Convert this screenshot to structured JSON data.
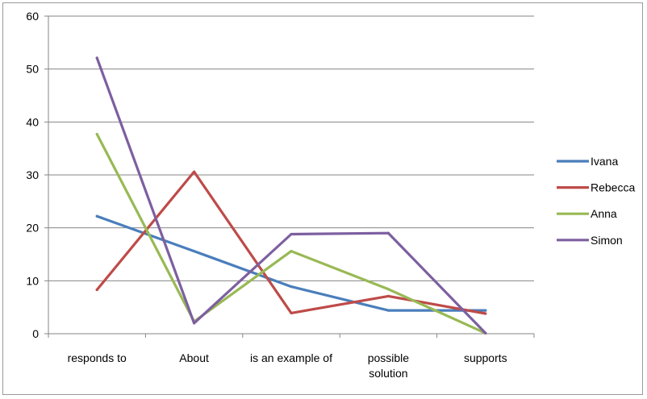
{
  "chart_data": {
    "type": "line",
    "title": "",
    "xlabel": "",
    "ylabel": "",
    "categories": [
      "responds to",
      "About",
      "is an example of",
      "possible solution",
      "supports"
    ],
    "ylim": [
      0,
      60
    ],
    "yticks": [
      0,
      10,
      20,
      30,
      40,
      50,
      60
    ],
    "grid": true,
    "legend_position": "right",
    "series": [
      {
        "name": "Ivana",
        "color": "#4a7ebb",
        "values": [
          22.2,
          15.6,
          8.9,
          4.4,
          4.4
        ]
      },
      {
        "name": "Rebecca",
        "color": "#be4b48",
        "values": [
          8.3,
          30.6,
          3.9,
          7.1,
          3.8
        ]
      },
      {
        "name": "Anna",
        "color": "#98b954",
        "values": [
          37.7,
          2.3,
          15.6,
          8.4,
          0.1
        ]
      },
      {
        "name": "Simon",
        "color": "#7d5fa0",
        "values": [
          52.1,
          2.0,
          18.8,
          19.0,
          0.1
        ]
      }
    ]
  }
}
